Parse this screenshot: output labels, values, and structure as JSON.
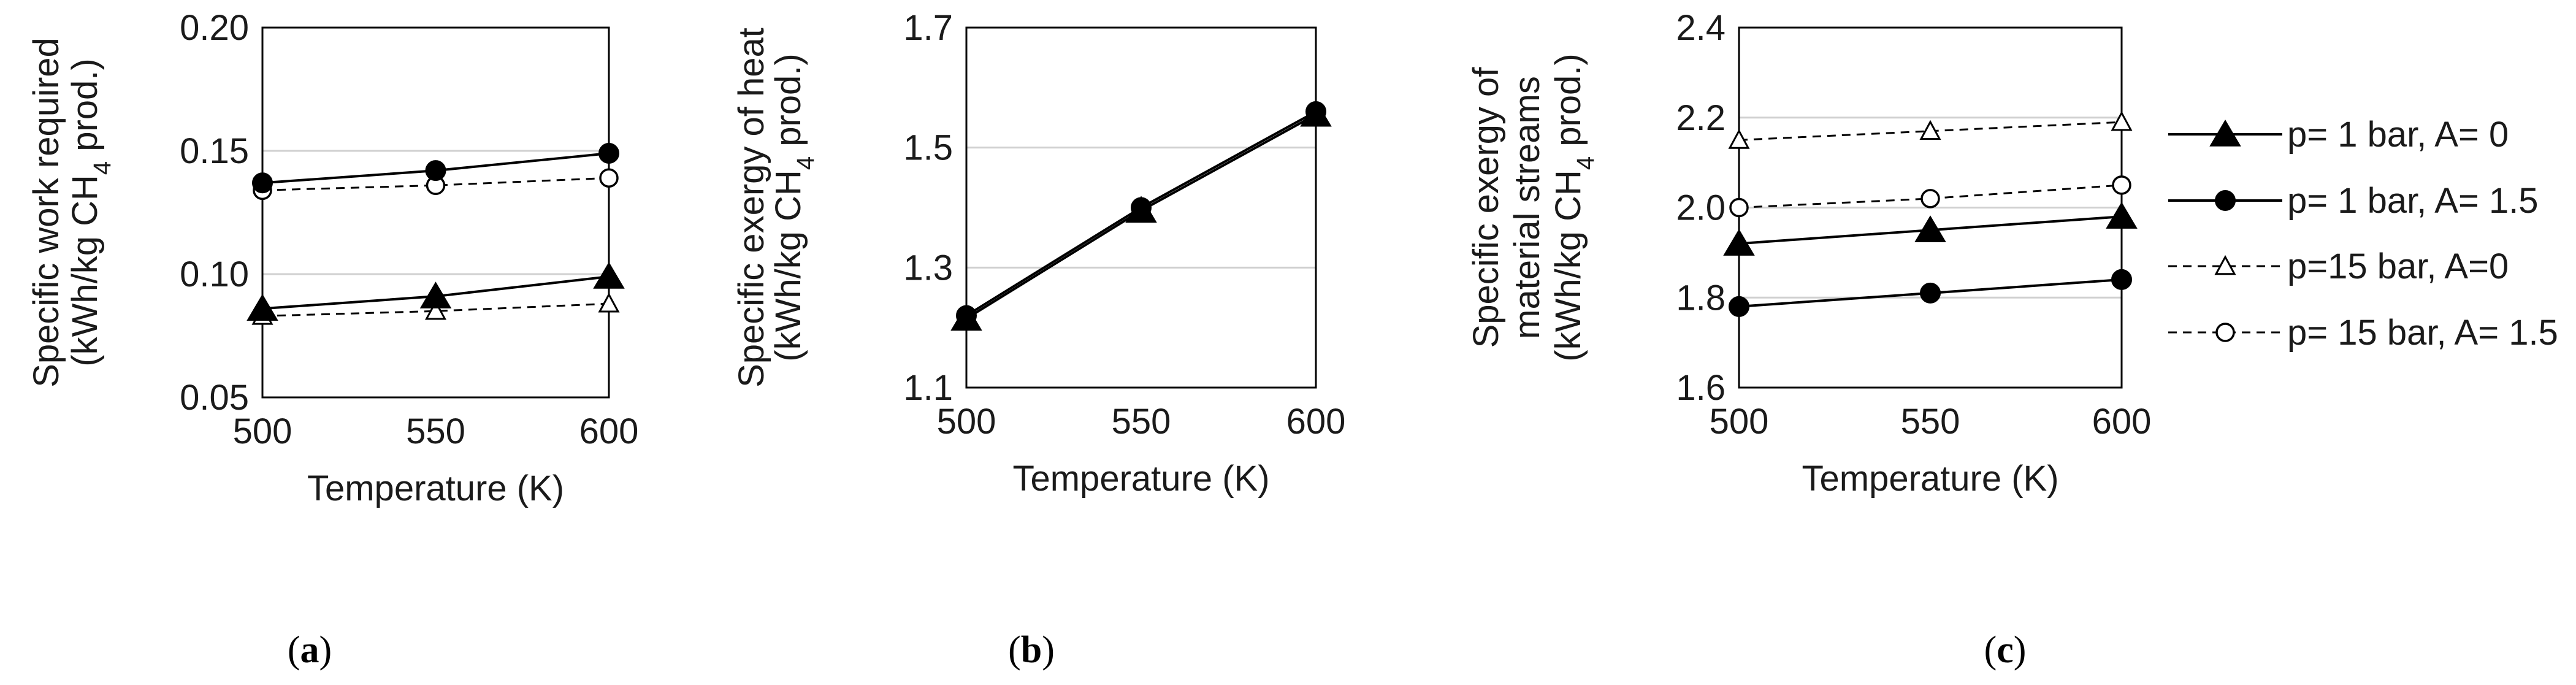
{
  "chart_data": [
    {
      "type": "line",
      "panel_label": "a",
      "xlabel": "Temperature (K)",
      "ylabel": {
        "line1": "Specific work required",
        "line2_pre": "(kWh/kg CH",
        "line2_sub": "4",
        "line2_post": " prod.)"
      },
      "x": [
        500,
        550,
        600
      ],
      "xlim": [
        500,
        600
      ],
      "ylim": [
        0.05,
        0.2
      ],
      "x_ticks": [
        "500",
        "550",
        "600"
      ],
      "y_ticks": [
        "0.05",
        "0.10",
        "0.15",
        "0.20"
      ],
      "y_tick_values": [
        0.05,
        0.1,
        0.15,
        0.2
      ],
      "grid": true,
      "series": [
        {
          "name": "p= 1 bar, A= 0",
          "values": [
            0.086,
            0.091,
            0.099
          ],
          "marker": "triangle-filled",
          "line": "solid"
        },
        {
          "name": "p= 1 bar, A= 1.5",
          "values": [
            0.137,
            0.142,
            0.149
          ],
          "marker": "circle-filled",
          "line": "solid"
        },
        {
          "name": "p=15 bar, A=0",
          "values": [
            0.083,
            0.085,
            0.088
          ],
          "marker": "triangle-open",
          "line": "dashed"
        },
        {
          "name": "p= 15 bar, A= 1.5",
          "values": [
            0.134,
            0.136,
            0.139
          ],
          "marker": "circle-open",
          "line": "dashed"
        }
      ]
    },
    {
      "type": "line",
      "panel_label": "b",
      "xlabel": "Temperature (K)",
      "ylabel": {
        "line1": "Specific exergy of heat",
        "line2_pre": "(kWh/kg CH",
        "line2_sub": "4",
        "line2_post": " prod.)"
      },
      "x": [
        500,
        550,
        600
      ],
      "xlim": [
        500,
        600
      ],
      "ylim": [
        1.1,
        1.7
      ],
      "x_ticks": [
        "500",
        "550",
        "600"
      ],
      "y_ticks": [
        "1.1",
        "1.3",
        "1.5",
        "1.7"
      ],
      "y_tick_values": [
        1.1,
        1.3,
        1.5,
        1.7
      ],
      "grid": true,
      "series": [
        {
          "name": "p= 1 bar, A= 0",
          "values": [
            1.215,
            1.395,
            1.555
          ],
          "marker": "triangle-filled",
          "line": "solid"
        },
        {
          "name": "p= 1 bar, A= 1.5",
          "values": [
            1.22,
            1.4,
            1.56
          ],
          "marker": "circle-filled",
          "line": "solid"
        },
        {
          "name": "p=15 bar, A=0",
          "values": [
            1.215,
            1.395,
            1.555
          ],
          "marker": "triangle-open",
          "line": "dashed"
        },
        {
          "name": "p= 15 bar, A= 1.5",
          "values": [
            1.22,
            1.4,
            1.56
          ],
          "marker": "circle-open",
          "line": "dashed"
        }
      ]
    },
    {
      "type": "line",
      "panel_label": "c",
      "xlabel": "Temperature (K)",
      "ylabel": {
        "line1": "Specific exergy of",
        "line2": "material streams",
        "line3_pre": "(kWh/kg CH",
        "line3_sub": "4",
        "line3_post": " prod.)"
      },
      "x": [
        500,
        550,
        600
      ],
      "xlim": [
        500,
        600
      ],
      "ylim": [
        1.6,
        2.4
      ],
      "x_ticks": [
        "500",
        "550",
        "600"
      ],
      "y_ticks": [
        "1.6",
        "1.8",
        "2.0",
        "2.2",
        "2.4"
      ],
      "y_tick_values": [
        1.6,
        1.8,
        2.0,
        2.2,
        2.4
      ],
      "grid": true,
      "legend_position": "right",
      "series": [
        {
          "name": "p= 1 bar, A= 0",
          "values": [
            1.92,
            1.95,
            1.98
          ],
          "marker": "triangle-filled",
          "line": "solid"
        },
        {
          "name": "p= 1 bar, A= 1.5",
          "values": [
            1.78,
            1.81,
            1.84
          ],
          "marker": "circle-filled",
          "line": "solid"
        },
        {
          "name": "p=15 bar, A=0",
          "values": [
            2.15,
            2.17,
            2.19
          ],
          "marker": "triangle-open",
          "line": "dashed"
        },
        {
          "name": "p= 15 bar, A= 1.5",
          "values": [
            2.0,
            2.02,
            2.05
          ],
          "marker": "circle-open",
          "line": "dashed"
        }
      ]
    }
  ],
  "legend": [
    {
      "label": "p= 1 bar, A= 0",
      "marker": "triangle-filled",
      "line": "solid"
    },
    {
      "label": "p= 1 bar, A= 1.5",
      "marker": "circle-filled",
      "line": "solid"
    },
    {
      "label": "p=15 bar, A=0",
      "marker": "triangle-open",
      "line": "dashed"
    },
    {
      "label": "p= 15 bar, A= 1.5",
      "marker": "circle-open",
      "line": "dashed"
    }
  ],
  "captions": [
    "a",
    "b",
    "c"
  ],
  "colors": {
    "line": "#000000",
    "grid": "#d0d0d0",
    "frame": "#000000",
    "text": "#1a1a1a"
  }
}
